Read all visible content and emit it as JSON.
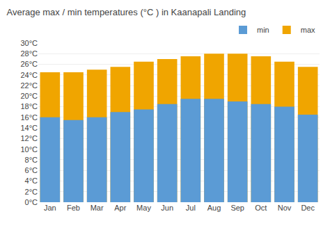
{
  "chart_data": {
    "type": "bar",
    "title": "Average max / min temperatures (°C ) in Kaanapali Landing",
    "categories": [
      "Jan",
      "Feb",
      "Mar",
      "Apr",
      "May",
      "Jun",
      "Jul",
      "Aug",
      "Sep",
      "Oct",
      "Nov",
      "Dec"
    ],
    "series": [
      {
        "name": "max",
        "color": "#f0a500",
        "values": [
          24.5,
          24.5,
          25,
          25.5,
          26.5,
          27,
          27.5,
          28,
          28,
          27.5,
          26.5,
          25.5
        ]
      },
      {
        "name": "min",
        "color": "#5b9bd5",
        "values": [
          16,
          15.5,
          16,
          17,
          17.5,
          18.5,
          19.5,
          19.5,
          19,
          18.5,
          18,
          16.5
        ]
      }
    ],
    "stacked": false,
    "ylim": [
      0,
      30
    ],
    "yticks": [
      {
        "value": 0,
        "label": "0°C"
      },
      {
        "value": 2,
        "label": "2°C"
      },
      {
        "value": 4,
        "label": "4°C"
      },
      {
        "value": 6,
        "label": "6°C"
      },
      {
        "value": 8,
        "label": "8°C"
      },
      {
        "value": 10,
        "label": "10°C"
      },
      {
        "value": 12,
        "label": "12°C"
      },
      {
        "value": 14,
        "label": "14°C"
      },
      {
        "value": 16,
        "label": "16°C"
      },
      {
        "value": 18,
        "label": "18°C"
      },
      {
        "value": 20,
        "label": "20°C"
      },
      {
        "value": 22,
        "label": "22°C"
      },
      {
        "value": 24,
        "label": "24°C"
      },
      {
        "value": 26,
        "label": "26°C"
      },
      {
        "value": 28,
        "label": "28°C"
      },
      {
        "value": 30,
        "label": "30°C"
      }
    ],
    "grid": true,
    "legend": "upper right"
  }
}
